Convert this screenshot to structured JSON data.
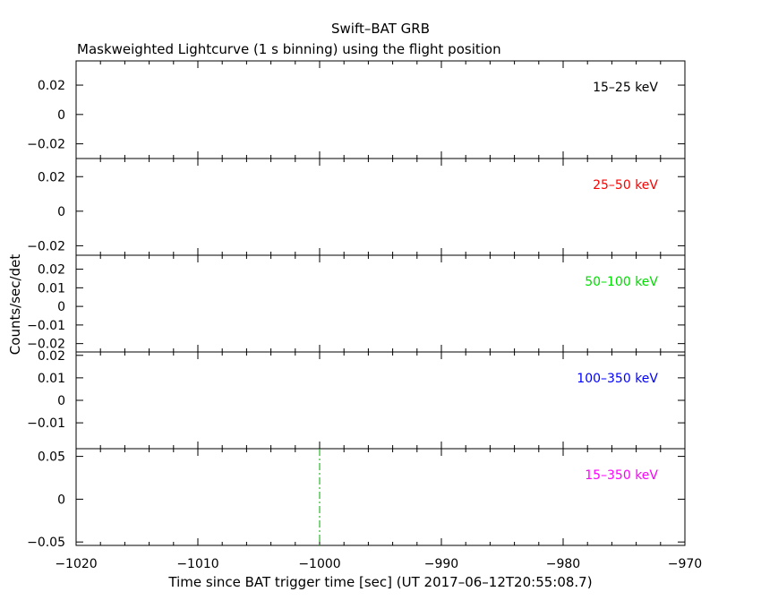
{
  "chart_data": {
    "type": "line",
    "title": "Swift–BAT GRB",
    "subtitle": "Maskweighted Lightcurve (1 s binning) using the flight position",
    "xlabel": "Time since BAT trigger time [sec] (UT 2017–06–12T20:55:08.7)",
    "ylabel": "Counts/sec/det",
    "xlim": [
      -1020,
      -970
    ],
    "x_ticks": [
      -1020,
      -1010,
      -1000,
      -990,
      -980,
      -970
    ],
    "x_tick_labels": [
      "−1020",
      "−1010",
      "−1000",
      "−990",
      "−980",
      "−970"
    ],
    "grid": false,
    "panels": [
      {
        "band": "15–25 keV",
        "color": "#000000",
        "ylim": [
          -0.03,
          0.0365
        ],
        "y_ticks": [
          -0.02,
          0,
          0.02
        ],
        "y_tick_labels": [
          "−0.02",
          "0",
          "0.02"
        ],
        "x": [],
        "y": []
      },
      {
        "band": "25–50 keV",
        "color": "#ff0000",
        "ylim": [
          -0.0255,
          0.0305
        ],
        "y_ticks": [
          -0.02,
          0,
          0.02
        ],
        "y_tick_labels": [
          "−0.02",
          "0",
          "0.02"
        ],
        "x": [],
        "y": []
      },
      {
        "band": "50–100 keV",
        "color": "#00dd00",
        "ylim": [
          -0.0245,
          0.0275
        ],
        "y_ticks": [
          -0.02,
          -0.01,
          0,
          0.01,
          0.02
        ],
        "y_tick_labels": [
          "−0.02",
          "−0.01",
          "0",
          "0.01",
          "0.02"
        ],
        "x": [],
        "y": []
      },
      {
        "band": "100–350 keV",
        "color": "#0000ff",
        "ylim": [
          -0.0215,
          0.0215
        ],
        "y_ticks": [
          -0.01,
          0,
          0.01,
          0.02
        ],
        "y_tick_labels": [
          "−0.01",
          "0",
          "0.01",
          "0.02"
        ],
        "x": [],
        "y": []
      },
      {
        "band": "15–350 keV",
        "color": "#ff00ff",
        "ylim": [
          -0.054,
          0.059
        ],
        "y_ticks": [
          -0.05,
          0,
          0.05
        ],
        "y_tick_labels": [
          "−0.05",
          "0",
          "0.05"
        ],
        "x": [],
        "y": []
      }
    ],
    "markers": [
      {
        "x": -1000,
        "panel": 4,
        "color": "#00aa00",
        "style": "dash-dot"
      }
    ]
  }
}
